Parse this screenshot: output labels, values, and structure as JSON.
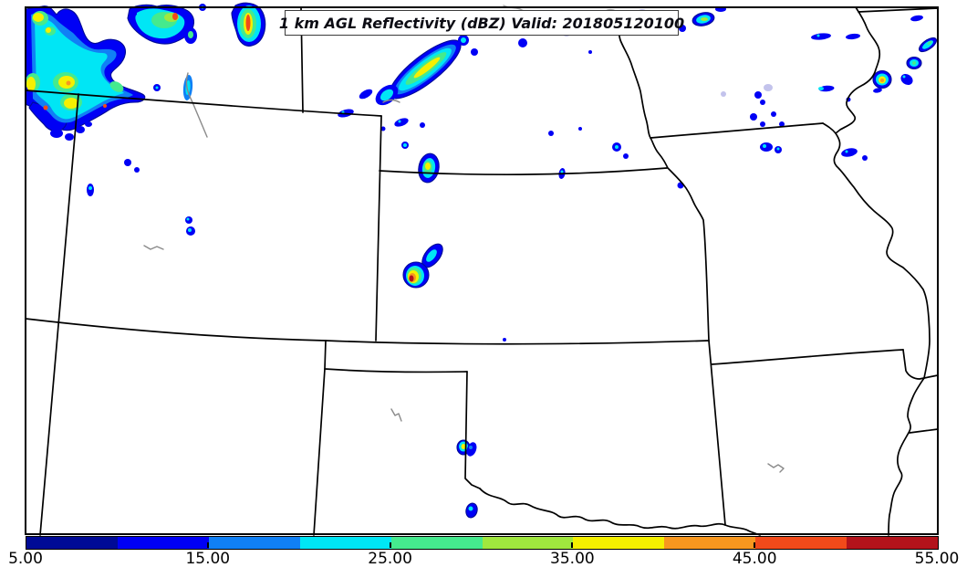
{
  "title": {
    "text": "1 km AGL Reflectivity (dBZ) Valid: 201805120100"
  },
  "colorbar": {
    "min": 5.0,
    "max": 55.0,
    "units": "dBZ",
    "tick_labels": [
      "5.00",
      "15.00",
      "25.00",
      "35.00",
      "45.00",
      "55.00"
    ],
    "tick_values": [
      5,
      15,
      25,
      35,
      45,
      55
    ],
    "segments": [
      {
        "range": "5-10",
        "color": "#000a96"
      },
      {
        "range": "10-15",
        "color": "#0000f5"
      },
      {
        "range": "15-20",
        "color": "#1080f5"
      },
      {
        "range": "20-25",
        "color": "#00e6f5"
      },
      {
        "range": "25-30",
        "color": "#45ea8e"
      },
      {
        "range": "30-35",
        "color": "#a0e83e"
      },
      {
        "range": "35-40",
        "color": "#f5f000"
      },
      {
        "range": "40-45",
        "color": "#f8971f"
      },
      {
        "range": "45-50",
        "color": "#f24a1a"
      },
      {
        "range": "50-55",
        "color": "#b3131b"
      }
    ],
    "low_value_color": "#c3c3ec"
  },
  "chart_data": {
    "type": "heatmap",
    "title": "1 km AGL Reflectivity (dBZ) Valid: 201805120100",
    "colorbar_range": [
      5.0,
      55.0
    ],
    "colorbar_tick_labels": [
      "5.00",
      "15.00",
      "25.00",
      "35.00",
      "45.00",
      "55.00"
    ],
    "legend_position": "bottom"
  }
}
